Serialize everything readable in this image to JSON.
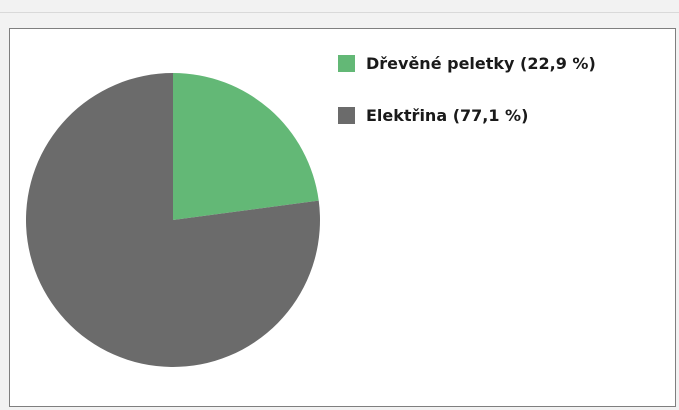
{
  "header": {
    "caption": ""
  },
  "colors": {
    "slice_1": "#63b876",
    "slice_2": "#6b6b6b"
  },
  "chart_data": {
    "type": "pie",
    "start_angle_deg": 0,
    "direction": "clockwise",
    "legend_position": "right",
    "slices": [
      {
        "label": "Dřevěné peletky (22,9 %)",
        "value": 22.9,
        "color": "#63b876"
      },
      {
        "label": "Elektřina (77,1 %)",
        "value": 77.1,
        "color": "#6b6b6b"
      }
    ]
  }
}
